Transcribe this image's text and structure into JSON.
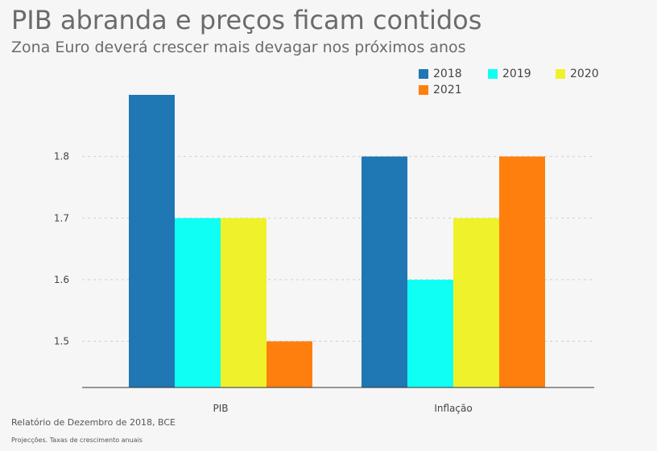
{
  "header": {
    "title": "PIB abranda e preços ficam contidos",
    "subtitle": "Zona Euro deverá crescer mais devagar nos próximos anos"
  },
  "footer": {
    "source": "Relatório de Dezembro de 2018, BCE",
    "note": "Projecções. Taxas de crescimento anuais"
  },
  "chart_data": {
    "type": "bar",
    "categories": [
      "PIB",
      "Inflação"
    ],
    "series": [
      {
        "name": "2018",
        "color": "#1f77b4",
        "values": [
          1.9,
          1.8
        ]
      },
      {
        "name": "2019",
        "color": "#10fff4",
        "values": [
          1.7,
          1.6
        ]
      },
      {
        "name": "2020",
        "color": "#eff22b",
        "values": [
          1.7,
          1.7
        ]
      },
      {
        "name": "2021",
        "color": "#ff7f0e",
        "values": [
          1.5,
          1.8
        ]
      }
    ],
    "yticks": [
      1.5,
      1.6,
      1.7,
      1.8
    ],
    "ylim": [
      1.425,
      1.9
    ],
    "grid": true,
    "legend": "top-right"
  }
}
